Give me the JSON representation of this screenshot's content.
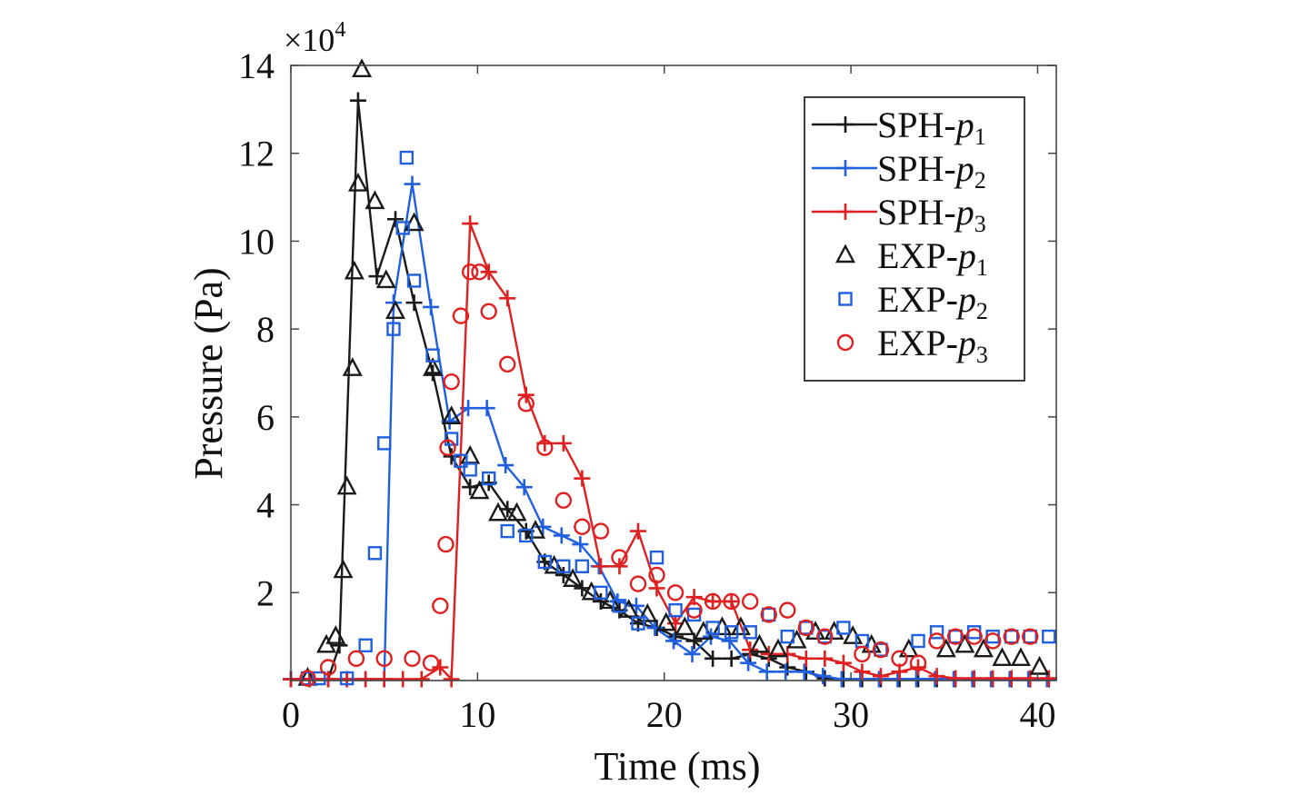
{
  "chart_data": {
    "type": "line",
    "xlabel": "Time (ms)",
    "ylabel": "Pressure (Pa)",
    "y_multiplier": "×10",
    "y_multiplier_exp": "4",
    "xlim": [
      0,
      41
    ],
    "ylim": [
      0,
      14
    ],
    "x_ticks": [
      0,
      10,
      20,
      30,
      40
    ],
    "y_ticks": [
      2,
      4,
      6,
      8,
      10,
      12,
      14
    ],
    "grid": false,
    "legend_position": "top-right",
    "series": [
      {
        "name": "SPH-",
        "name_var": "p",
        "name_sub": "1",
        "kind": "line",
        "marker": "plus",
        "color": "#1a1a1a",
        "x": [
          0.0,
          1.0,
          2.0,
          2.6,
          3.6,
          4.6,
          5.6,
          6.6,
          7.6,
          8.6,
          9.6,
          10.6,
          11.6,
          12.6,
          13.6,
          14.6,
          15.6,
          16.6,
          17.6,
          18.6,
          19.6,
          20.6,
          21.6,
          22.6,
          23.6,
          24.6,
          25.6,
          26.6,
          27.6,
          28.6,
          29.6,
          30.6,
          31.6,
          32.6,
          33.6,
          34.6,
          35.6,
          36.6,
          37.6,
          38.6,
          39.6,
          40.6
        ],
        "y": [
          0.03,
          0.03,
          0.03,
          0.8,
          13.2,
          9.2,
          10.5,
          8.6,
          7.0,
          5.1,
          4.4,
          4.5,
          3.9,
          3.4,
          2.7,
          2.4,
          2.1,
          1.8,
          1.6,
          1.3,
          1.2,
          1.0,
          0.9,
          0.5,
          0.5,
          0.6,
          0.5,
          0.3,
          0.2,
          0.05,
          0.03,
          0.03,
          0.03,
          0.03,
          0.03,
          0.03,
          0.03,
          0.03,
          0.03,
          0.03,
          0.03,
          0.03
        ]
      },
      {
        "name": "SPH-",
        "name_var": "p",
        "name_sub": "2",
        "kind": "line",
        "marker": "plus",
        "color": "#1f5fe0",
        "x": [
          0.0,
          1.0,
          2.0,
          3.0,
          4.0,
          5.0,
          5.5,
          6.5,
          7.5,
          8.5,
          9.5,
          10.5,
          11.5,
          12.5,
          13.5,
          14.5,
          15.5,
          16.5,
          17.5,
          18.5,
          19.5,
          20.5,
          21.5,
          22.5,
          23.5,
          24.5,
          25.5,
          26.5,
          27.5,
          28.5,
          29.5,
          30.5,
          31.5,
          32.5,
          33.5,
          34.5,
          35.5,
          36.5,
          37.5,
          38.5,
          39.5,
          40.5
        ],
        "y": [
          0.03,
          0.03,
          0.03,
          0.03,
          0.03,
          0.03,
          8.6,
          11.3,
          8.5,
          5.9,
          6.2,
          6.2,
          4.9,
          4.4,
          3.5,
          3.3,
          3.1,
          2.6,
          1.8,
          1.7,
          1.2,
          0.9,
          0.6,
          1.0,
          0.9,
          0.4,
          0.2,
          0.2,
          0.2,
          0.1,
          0.03,
          0.03,
          0.03,
          0.03,
          0.03,
          0.03,
          0.03,
          0.03,
          0.03,
          0.03,
          0.03,
          0.03
        ]
      },
      {
        "name": "SPH-",
        "name_var": "p",
        "name_sub": "3",
        "kind": "line",
        "marker": "plus",
        "color": "#e02020",
        "x": [
          0.0,
          1.0,
          2.0,
          3.0,
          4.0,
          5.0,
          6.0,
          7.0,
          8.0,
          8.6,
          9.6,
          10.6,
          11.6,
          12.6,
          13.6,
          14.6,
          15.6,
          16.6,
          17.6,
          18.6,
          19.6,
          20.6,
          21.6,
          22.6,
          23.6,
          24.6,
          25.6,
          26.6,
          27.6,
          28.6,
          29.6,
          30.6,
          31.6,
          32.6,
          33.6,
          34.6,
          35.6,
          36.6,
          37.6,
          38.6,
          39.6,
          40.6
        ],
        "y": [
          0.03,
          0.03,
          0.03,
          0.03,
          0.03,
          0.03,
          0.03,
          0.03,
          0.3,
          0.03,
          10.4,
          9.3,
          8.7,
          6.5,
          5.4,
          5.4,
          4.6,
          2.6,
          2.6,
          3.4,
          2.1,
          1.3,
          1.9,
          1.8,
          1.8,
          0.7,
          0.6,
          0.6,
          0.5,
          0.5,
          0.4,
          0.2,
          0.1,
          0.2,
          0.3,
          0.1,
          0.05,
          0.05,
          0.05,
          0.05,
          0.05,
          0.05
        ]
      },
      {
        "name": "EXP-",
        "name_var": "p",
        "name_sub": "1",
        "kind": "scatter",
        "marker": "triangle",
        "color": "#1a1a1a",
        "x": [
          0.9,
          1.9,
          2.4,
          2.8,
          3.0,
          3.3,
          3.4,
          3.6,
          3.8,
          4.5,
          5.1,
          5.6,
          6.6,
          7.6,
          8.6,
          9.6,
          10.1,
          11.1,
          12.1,
          13.1,
          14.1,
          15.1,
          16.1,
          17.1,
          18.1,
          19.1,
          20.1,
          21.1,
          22.1,
          23.1,
          24.1,
          25.1,
          26.1,
          27.1,
          28.1,
          29.1,
          30.1,
          31.1,
          33.1,
          35.1,
          36.1,
          37.1,
          38.1,
          39.1,
          40.1
        ],
        "y": [
          0.05,
          0.8,
          1.0,
          2.5,
          4.4,
          7.1,
          9.3,
          11.3,
          13.9,
          10.9,
          9.1,
          8.4,
          10.4,
          7.1,
          6.0,
          5.1,
          4.3,
          3.8,
          3.8,
          3.4,
          2.6,
          2.3,
          2.0,
          1.8,
          1.6,
          1.5,
          1.3,
          1.2,
          1.1,
          1.2,
          1.2,
          0.8,
          0.7,
          0.9,
          1.1,
          1.1,
          1.0,
          0.8,
          0.7,
          0.7,
          0.8,
          0.7,
          0.5,
          0.5,
          0.3
        ]
      },
      {
        "name": "EXP-",
        "name_var": "p",
        "name_sub": "2",
        "kind": "scatter",
        "marker": "square",
        "color": "#1f5fe0",
        "x": [
          0.9,
          1.5,
          3.0,
          4.0,
          4.5,
          5.0,
          5.5,
          6.0,
          6.2,
          6.6,
          7.6,
          8.6,
          9.1,
          9.6,
          10.6,
          11.6,
          12.6,
          13.6,
          14.6,
          15.6,
          16.6,
          17.6,
          18.6,
          19.6,
          20.6,
          21.6,
          22.6,
          23.6,
          24.6,
          25.6,
          26.6,
          27.6,
          28.6,
          29.6,
          30.6,
          31.6,
          33.6,
          34.6,
          35.6,
          36.6,
          37.6,
          38.6,
          39.6,
          40.6
        ],
        "y": [
          0.05,
          0.05,
          0.05,
          0.8,
          2.9,
          5.4,
          8.0,
          10.3,
          11.9,
          9.1,
          7.4,
          5.5,
          5.0,
          4.8,
          4.6,
          3.4,
          3.3,
          2.7,
          2.6,
          2.6,
          2.0,
          1.7,
          1.3,
          2.8,
          1.6,
          1.5,
          1.2,
          1.1,
          1.1,
          1.5,
          1.0,
          1.2,
          1.0,
          1.2,
          0.9,
          0.7,
          0.9,
          1.1,
          1.0,
          1.1,
          1.0,
          1.0,
          1.0,
          1.0
        ]
      },
      {
        "name": "EXP-",
        "name_var": "p",
        "name_sub": "3",
        "kind": "scatter",
        "marker": "circle",
        "color": "#e02020",
        "x": [
          0.9,
          2.0,
          3.5,
          5.0,
          6.5,
          7.5,
          8.0,
          8.3,
          8.4,
          8.6,
          9.1,
          9.6,
          10.1,
          10.6,
          11.6,
          12.6,
          13.6,
          14.6,
          15.6,
          16.6,
          17.6,
          18.6,
          19.6,
          20.6,
          21.6,
          22.6,
          23.6,
          24.6,
          25.6,
          26.6,
          27.6,
          28.6,
          30.6,
          31.6,
          32.6,
          33.6,
          34.6,
          35.6,
          36.6,
          37.6,
          38.6,
          39.6
        ],
        "y": [
          0.05,
          0.3,
          0.5,
          0.5,
          0.5,
          0.4,
          1.7,
          3.1,
          5.3,
          6.8,
          8.3,
          9.3,
          9.3,
          8.4,
          7.2,
          6.3,
          5.3,
          4.1,
          3.5,
          3.4,
          2.8,
          2.2,
          2.4,
          2.0,
          1.6,
          1.8,
          1.8,
          1.8,
          1.5,
          1.6,
          1.2,
          1.0,
          0.6,
          0.7,
          0.5,
          0.4,
          0.9,
          1.0,
          1.0,
          0.9,
          1.0,
          1.0
        ]
      }
    ]
  }
}
